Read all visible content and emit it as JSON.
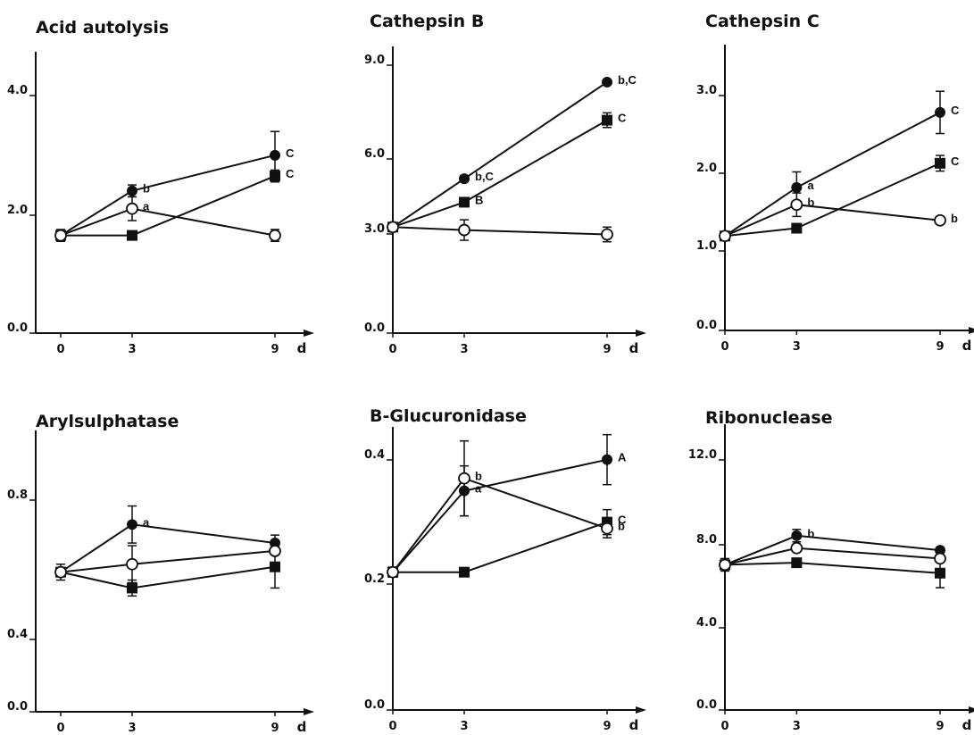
{
  "chart_data": [
    {
      "type": "line",
      "title": "Acid autolysis",
      "x": [
        0,
        3,
        9
      ],
      "x_unit": "d",
      "ylim": [
        0,
        4.8
      ],
      "yticks": [
        "0.0",
        "2.0",
        "4.0"
      ],
      "series": [
        {
          "marker": "filled-circle",
          "values": [
            1.65,
            2.4,
            3.0
          ],
          "error": [
            0,
            0.1,
            0.4
          ],
          "labels": [
            "",
            "b",
            "C"
          ]
        },
        {
          "marker": "filled-square",
          "values": [
            1.65,
            1.65,
            2.65
          ],
          "error": [
            0,
            0,
            0.1
          ],
          "labels": [
            "",
            "",
            "C"
          ]
        },
        {
          "marker": "open-circle",
          "values": [
            1.65,
            2.1,
            1.65
          ],
          "error": [
            0.1,
            0.2,
            0.1
          ],
          "labels": [
            "",
            "a",
            ""
          ]
        }
      ]
    },
    {
      "type": "line",
      "title": "Cathepsin B",
      "x": [
        0,
        3,
        9
      ],
      "x_unit": "d",
      "ylim": [
        0,
        10.5
      ],
      "yticks": [
        "0.0",
        "3.0",
        "6.0",
        "9.0"
      ],
      "series": [
        {
          "marker": "filled-circle",
          "values": [
            3.5,
            5.15,
            8.45
          ],
          "error": [
            0,
            0.1,
            0
          ],
          "labels": [
            "",
            "b,C",
            "b,C"
          ]
        },
        {
          "marker": "filled-square",
          "values": [
            3.5,
            4.35,
            7.15
          ],
          "error": [
            0,
            0,
            0.25
          ],
          "labels": [
            "",
            "B",
            "C"
          ]
        },
        {
          "marker": "open-circle",
          "values": [
            3.5,
            3.4,
            3.25
          ],
          "error": [
            0.15,
            0.35,
            0.25
          ],
          "labels": [
            "",
            "",
            ""
          ]
        }
      ]
    },
    {
      "type": "line",
      "title": "Cathepsin C",
      "x": [
        0,
        3,
        9
      ],
      "x_unit": "d",
      "ylim": [
        0,
        3.6
      ],
      "yticks": [
        "0.0",
        "1.0",
        "2.0",
        "3.0"
      ],
      "series": [
        {
          "marker": "filled-circle",
          "values": [
            1.2,
            1.82,
            2.78
          ],
          "error": [
            0,
            0.2,
            0.27
          ],
          "labels": [
            "",
            "a",
            "C"
          ]
        },
        {
          "marker": "filled-square",
          "values": [
            1.2,
            1.3,
            2.13
          ],
          "error": [
            0,
            0,
            0.1
          ],
          "labels": [
            "",
            "",
            "C"
          ]
        },
        {
          "marker": "open-circle",
          "values": [
            1.2,
            1.6,
            1.4
          ],
          "error": [
            0,
            0.15,
            0
          ],
          "labels": [
            "",
            "b",
            "b"
          ]
        }
      ]
    },
    {
      "type": "line",
      "title": "Arylsulphatase",
      "x": [
        0,
        3,
        9
      ],
      "x_unit": "d",
      "ylim": [
        0,
        1.0
      ],
      "yticks": [
        "0.0",
        "0.4",
        "0.8"
      ],
      "series": [
        {
          "marker": "filled-circle",
          "values": [
            0.57,
            0.75,
            0.68
          ],
          "error": [
            0,
            0.07,
            0.03
          ],
          "labels": [
            "",
            "a",
            ""
          ]
        },
        {
          "marker": "filled-square",
          "values": [
            0.57,
            0.51,
            0.59
          ],
          "error": [
            0,
            0.03,
            0.08
          ],
          "labels": [
            "",
            "",
            ""
          ]
        },
        {
          "marker": "open-circle",
          "values": [
            0.57,
            0.6,
            0.65
          ],
          "error": [
            0.03,
            0.07,
            0
          ],
          "labels": [
            "",
            "",
            ""
          ]
        }
      ]
    },
    {
      "type": "line",
      "title": "B-Glucuronidase",
      "x": [
        0,
        3,
        9
      ],
      "x_unit": "d",
      "ylim": [
        0,
        0.48
      ],
      "yticks": [
        "0.0",
        "0.2",
        "0.4"
      ],
      "series": [
        {
          "marker": "filled-circle",
          "values": [
            0.22,
            0.35,
            0.4
          ],
          "error": [
            0,
            0.04,
            0.04
          ],
          "labels": [
            "",
            "a",
            "A"
          ]
        },
        {
          "marker": "filled-square",
          "values": [
            0.22,
            0.22,
            0.3
          ],
          "error": [
            0,
            0.007,
            0.02
          ],
          "labels": [
            "",
            "",
            "C"
          ]
        },
        {
          "marker": "open-circle",
          "values": [
            0.22,
            0.37,
            0.29
          ],
          "error": [
            0.008,
            0.06,
            0.015
          ],
          "labels": [
            "",
            "b",
            "b"
          ]
        }
      ]
    },
    {
      "type": "line",
      "title": "Ribonuclease",
      "x": [
        0,
        3,
        9
      ],
      "x_unit": "d",
      "ylim": [
        0,
        14
      ],
      "yticks": [
        "0.0",
        "4.0",
        "8.0",
        "12.0"
      ],
      "series": [
        {
          "marker": "filled-circle",
          "values": [
            7.0,
            8.4,
            7.7
          ],
          "error": [
            0,
            0.3,
            0
          ],
          "labels": [
            "",
            "b",
            ""
          ]
        },
        {
          "marker": "filled-square",
          "values": [
            7.0,
            7.1,
            6.6
          ],
          "error": [
            0,
            0,
            0.7
          ],
          "labels": [
            "",
            "",
            ""
          ]
        },
        {
          "marker": "open-circle",
          "values": [
            7.0,
            7.8,
            7.3
          ],
          "error": [
            0.3,
            0,
            0
          ],
          "labels": [
            "",
            "",
            ""
          ]
        }
      ]
    }
  ]
}
